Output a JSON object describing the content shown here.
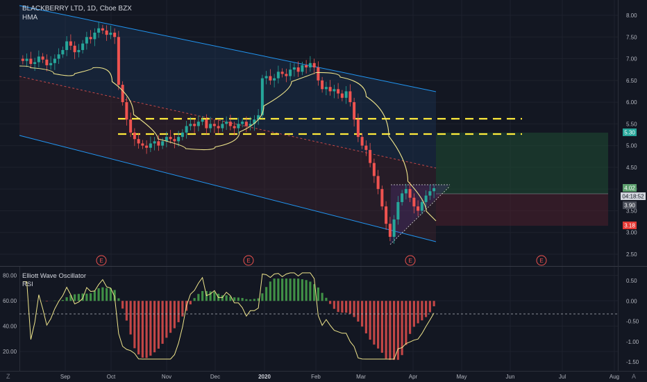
{
  "header": {
    "symbol_title": "BLACKBERRY LTD, 1D, Cboe BZX",
    "indicator": "HMA"
  },
  "sub_pane": {
    "indicator_1": "Elliott Wave Oscillator",
    "indicator_2": "RSI"
  },
  "main_axis": {
    "ticks": [
      "8.00",
      "7.50",
      "7.00",
      "6.50",
      "6.00",
      "5.50",
      "5.00",
      "4.50",
      "4.00",
      "3.50",
      "3.00",
      "2.50"
    ],
    "range": [
      2.4,
      8.2
    ]
  },
  "rsi_axis": {
    "ticks": [
      "80.00",
      "60.00",
      "40.00",
      "20.00"
    ],
    "range": [
      12,
      84
    ]
  },
  "ewo_axis": {
    "ticks": [
      "0.50",
      "0.00",
      "-0.50",
      "-1.00",
      "-1.50"
    ],
    "range": [
      -1.62,
      0.62
    ]
  },
  "time_axis": {
    "labels": [
      "Sep",
      "Oct",
      "Nov",
      "Dec",
      "2020",
      "Feb",
      "Mar",
      "Apr",
      "May",
      "Jun",
      "Jul",
      "Aug"
    ],
    "bold_label": "2020"
  },
  "price_badges": {
    "target": "5.30",
    "current_price": "4.02",
    "countdown": "04:18:52",
    "level_390": "3.90",
    "stop": "3.18"
  },
  "earnings_markers": [
    "E",
    "E",
    "E",
    "E"
  ],
  "corner_labels": {
    "left": "Z",
    "right": "A"
  },
  "colors": {
    "background": "#131722",
    "up": "#26a69a",
    "down": "#ef5350",
    "channel": "#2196f3",
    "hma": "#f0e68c",
    "levels": "#ffeb3b",
    "target_zone": "#1b3a2a",
    "stop_zone": "#3a1a24"
  },
  "chart_data": {
    "type": "candlestick",
    "ohlc_close": [
      6.95,
      7.0,
      6.88,
      6.92,
      7.05,
      6.98,
      6.85,
      6.9,
      7.0,
      7.1,
      7.2,
      7.4,
      7.3,
      7.15,
      7.2,
      7.35,
      7.5,
      7.45,
      7.6,
      7.7,
      7.65,
      7.55,
      7.6,
      7.5,
      6.4,
      6.0,
      5.6,
      5.3,
      5.15,
      5.05,
      5.0,
      4.95,
      5.05,
      5.1,
      5.0,
      5.1,
      5.2,
      5.15,
      5.1,
      5.2,
      5.3,
      5.45,
      5.5,
      5.45,
      5.55,
      5.6,
      5.4,
      5.5,
      5.45,
      5.4,
      5.5,
      5.55,
      5.45,
      5.4,
      5.5,
      5.55,
      5.45,
      5.5,
      5.6,
      5.7,
      6.55,
      6.6,
      6.5,
      6.55,
      6.7,
      6.65,
      6.6,
      6.75,
      6.8,
      6.7,
      6.85,
      6.8,
      6.9,
      6.8,
      6.5,
      6.3,
      6.35,
      6.25,
      6.3,
      6.2,
      6.1,
      6.25,
      6.0,
      5.6,
      5.2,
      5.0,
      4.9,
      4.6,
      4.3,
      4.0,
      3.6,
      3.2,
      2.9,
      3.3,
      3.7,
      3.9,
      4.0,
      3.8,
      3.6,
      3.5,
      3.7,
      3.85,
      3.95,
      4.02
    ],
    "channel_upper": [
      [
        0,
        8.2
      ],
      [
        86,
        6.3
      ]
    ],
    "channel_lower": [
      [
        0,
        5.3
      ],
      [
        86,
        2.85
      ]
    ],
    "levels": [
      5.63,
      5.3
    ],
    "target": 5.3,
    "entry": 4.02,
    "stop": 3.18,
    "y_axis_ticks": [
      "8.00",
      "7.50",
      "7.00",
      "6.50",
      "6.00",
      "5.50",
      "5.00",
      "4.50",
      "4.00",
      "3.50",
      "3.00",
      "2.50"
    ],
    "x_axis_labels": [
      "Sep",
      "Oct",
      "Nov",
      "Dec",
      "2020",
      "Feb",
      "Mar",
      "Apr",
      "May",
      "Jun",
      "Jul",
      "Aug"
    ]
  }
}
